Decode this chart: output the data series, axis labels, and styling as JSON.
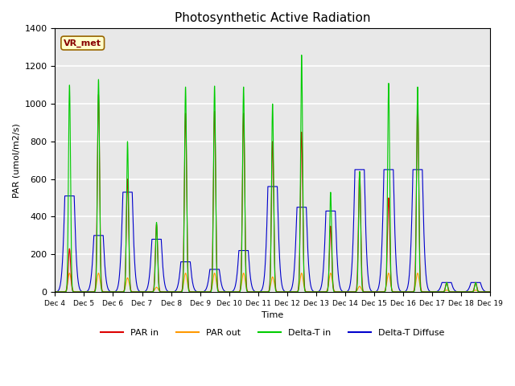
{
  "title": "Photosynthetic Active Radiation",
  "ylabel": "PAR (umol/m2/s)",
  "xlabel": "Time",
  "watermark": "VR_met",
  "ylim": [
    0,
    1400
  ],
  "x_tick_labels": [
    "Dec 4",
    "Dec 5",
    "Dec 6",
    "Dec 7",
    "Dec 8",
    "Dec 9",
    "Dec 10",
    "Dec 11",
    "Dec 12",
    "Dec 13",
    "Dec 14",
    "Dec 15",
    "Dec 16",
    "Dec 17",
    "Dec 18",
    "Dec 19"
  ],
  "plot_bg_color": "#e8e8e8",
  "grid_color": "white",
  "colors": {
    "PAR_in": "#dd0000",
    "PAR_out": "#ff9900",
    "Delta_T_in": "#00cc00",
    "Delta_T_Diffuse": "#0000cc"
  },
  "day_peaks": {
    "green": [
      1100,
      1130,
      800,
      370,
      1090,
      1095,
      1090,
      1000,
      1260,
      530,
      640,
      1110,
      1090,
      50,
      50
    ],
    "red": [
      230,
      1050,
      600,
      360,
      950,
      960,
      950,
      800,
      850,
      350,
      640,
      500,
      1000,
      50,
      50
    ],
    "orange": [
      100,
      100,
      75,
      25,
      100,
      100,
      100,
      80,
      100,
      100,
      30,
      100,
      100,
      10,
      10
    ],
    "blue": [
      510,
      300,
      530,
      280,
      160,
      120,
      220,
      560,
      450,
      430,
      650,
      650,
      650,
      50,
      50
    ]
  },
  "n_days": 15,
  "pts_per_day": 288,
  "day_start": 4
}
